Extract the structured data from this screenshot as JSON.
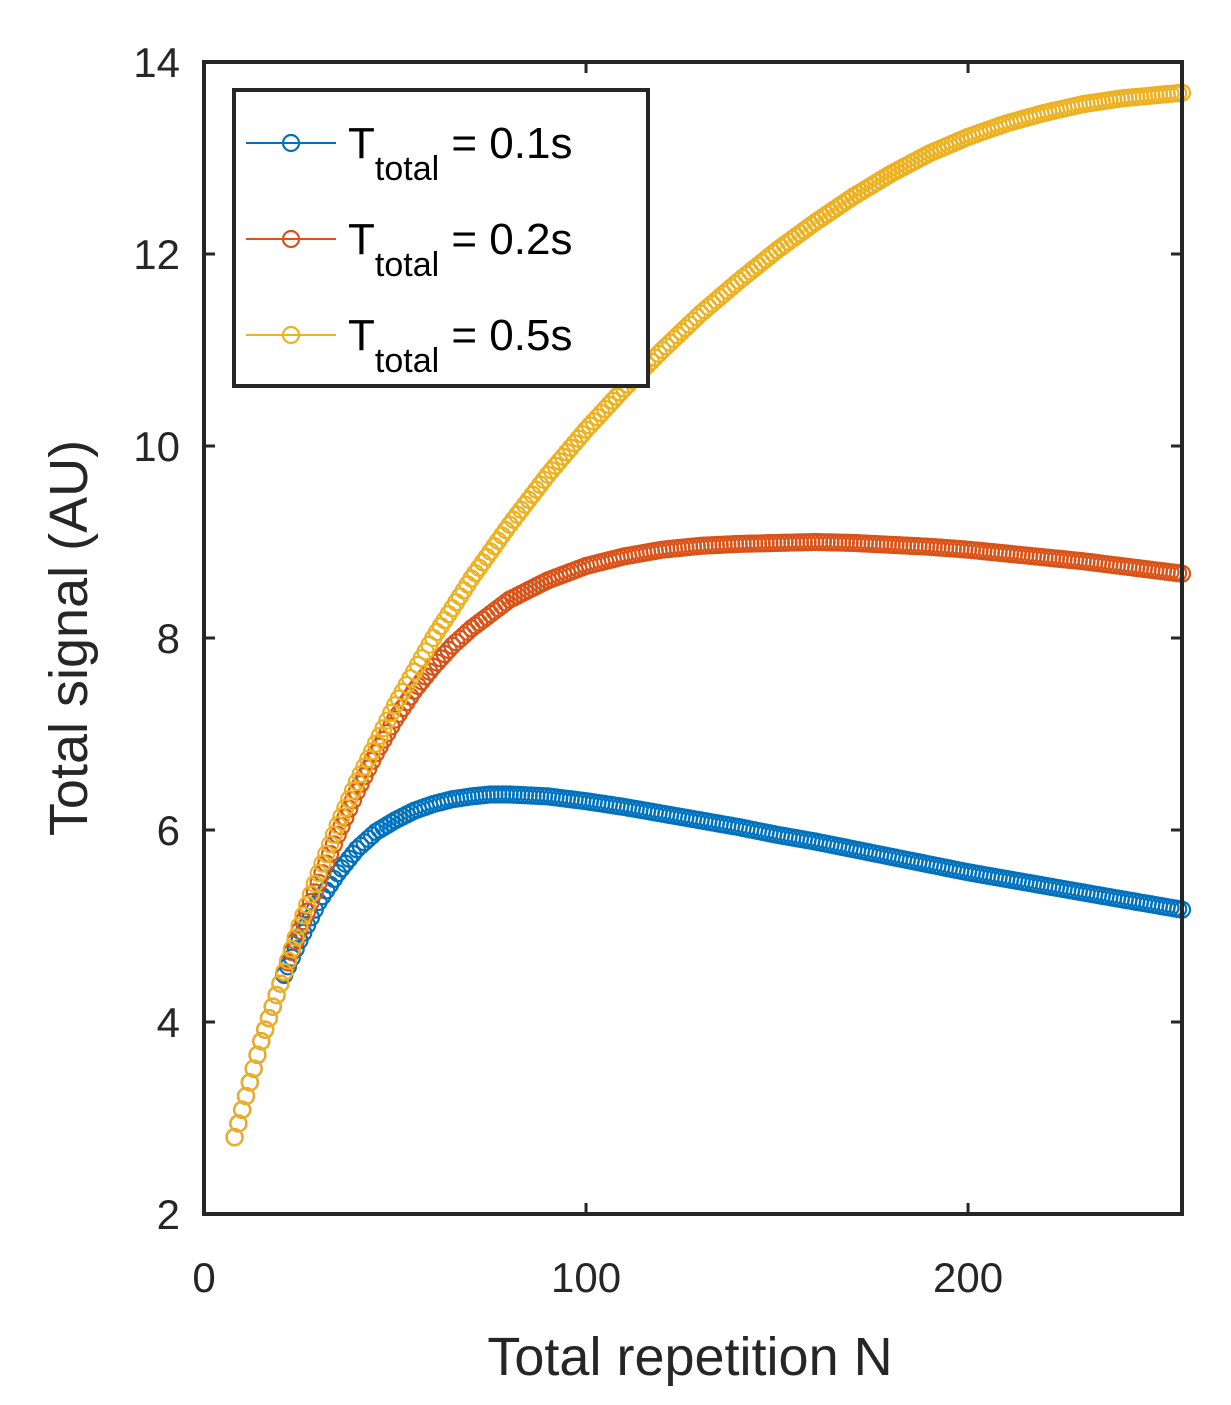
{
  "chart_data": {
    "type": "scatter",
    "xlabel": "Total repetition N",
    "ylabel": "Total signal (AU)",
    "xlim": [
      0,
      256
    ],
    "ylim": [
      2,
      14
    ],
    "xticks": [
      0,
      100,
      200
    ],
    "yticks": [
      2,
      4,
      6,
      8,
      10,
      12,
      14
    ],
    "grid": false,
    "legend_position": "top-left",
    "x": {
      "start": 8,
      "end": 256,
      "step": 1
    },
    "series": [
      {
        "name_main": "T",
        "name_sub": "total",
        "name_rest": " = 0.1s",
        "color": "#0072BD",
        "knots": [
          [
            8,
            2.8
          ],
          [
            15,
            3.8
          ],
          [
            20,
            4.4
          ],
          [
            25,
            4.85
          ],
          [
            30,
            5.25
          ],
          [
            35,
            5.55
          ],
          [
            40,
            5.8
          ],
          [
            45,
            5.98
          ],
          [
            50,
            6.1
          ],
          [
            55,
            6.2
          ],
          [
            60,
            6.27
          ],
          [
            65,
            6.32
          ],
          [
            70,
            6.35
          ],
          [
            75,
            6.37
          ],
          [
            80,
            6.37
          ],
          [
            90,
            6.35
          ],
          [
            100,
            6.3
          ],
          [
            110,
            6.24
          ],
          [
            120,
            6.17
          ],
          [
            130,
            6.1
          ],
          [
            140,
            6.03
          ],
          [
            150,
            5.95
          ],
          [
            160,
            5.88
          ],
          [
            170,
            5.8
          ],
          [
            180,
            5.72
          ],
          [
            190,
            5.64
          ],
          [
            200,
            5.56
          ],
          [
            210,
            5.49
          ],
          [
            220,
            5.42
          ],
          [
            230,
            5.35
          ],
          [
            240,
            5.28
          ],
          [
            256,
            5.17
          ]
        ]
      },
      {
        "name_main": "T",
        "name_sub": "total",
        "name_rest": " = 0.2s",
        "color": "#D95319",
        "knots": [
          [
            8,
            2.8
          ],
          [
            15,
            3.8
          ],
          [
            20,
            4.4
          ],
          [
            25,
            4.95
          ],
          [
            30,
            5.45
          ],
          [
            35,
            5.95
          ],
          [
            40,
            6.4
          ],
          [
            45,
            6.8
          ],
          [
            50,
            7.15
          ],
          [
            55,
            7.45
          ],
          [
            60,
            7.7
          ],
          [
            65,
            7.92
          ],
          [
            70,
            8.1
          ],
          [
            80,
            8.4
          ],
          [
            90,
            8.6
          ],
          [
            100,
            8.75
          ],
          [
            110,
            8.85
          ],
          [
            120,
            8.92
          ],
          [
            130,
            8.96
          ],
          [
            140,
            8.98
          ],
          [
            150,
            8.99
          ],
          [
            160,
            9.0
          ],
          [
            170,
            8.99
          ],
          [
            180,
            8.97
          ],
          [
            190,
            8.95
          ],
          [
            200,
            8.92
          ],
          [
            210,
            8.88
          ],
          [
            220,
            8.84
          ],
          [
            230,
            8.8
          ],
          [
            240,
            8.75
          ],
          [
            256,
            8.67
          ]
        ]
      },
      {
        "name_main": "T",
        "name_sub": "total",
        "name_rest": " = 0.5s",
        "color": "#EDB120",
        "knots": [
          [
            8,
            2.8
          ],
          [
            15,
            3.8
          ],
          [
            20,
            4.4
          ],
          [
            25,
            5.0
          ],
          [
            30,
            5.55
          ],
          [
            35,
            6.05
          ],
          [
            40,
            6.5
          ],
          [
            50,
            7.3
          ],
          [
            60,
            8.0
          ],
          [
            70,
            8.62
          ],
          [
            80,
            9.18
          ],
          [
            90,
            9.7
          ],
          [
            100,
            10.17
          ],
          [
            110,
            10.6
          ],
          [
            120,
            11.0
          ],
          [
            130,
            11.38
          ],
          [
            140,
            11.72
          ],
          [
            150,
            12.04
          ],
          [
            160,
            12.33
          ],
          [
            170,
            12.6
          ],
          [
            180,
            12.84
          ],
          [
            190,
            13.05
          ],
          [
            200,
            13.22
          ],
          [
            210,
            13.36
          ],
          [
            220,
            13.47
          ],
          [
            230,
            13.56
          ],
          [
            240,
            13.62
          ],
          [
            256,
            13.68
          ]
        ]
      }
    ]
  }
}
